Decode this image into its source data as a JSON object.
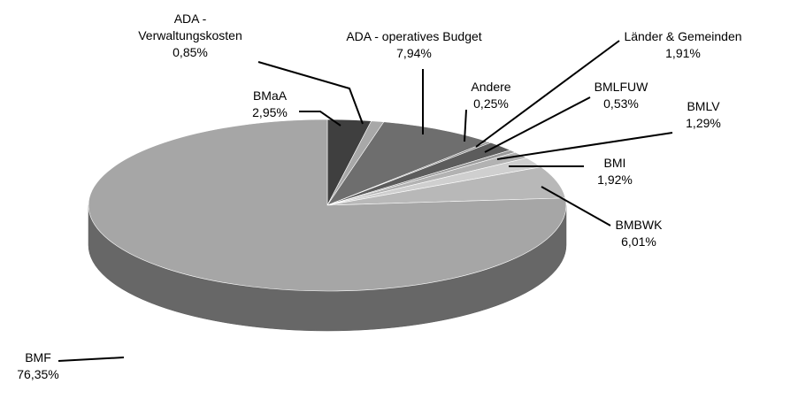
{
  "chart_data": {
    "type": "pie3d",
    "categories": [
      "BMaA",
      "ADA - Verwaltungskosten",
      "ADA - operatives Budget",
      "Andere",
      "Länder & Gemeinden",
      "BMLFUW",
      "BMLV",
      "BMI",
      "BMBWK",
      "BMF"
    ],
    "values": [
      2.95,
      0.85,
      7.94,
      0.25,
      1.91,
      0.53,
      1.29,
      1.92,
      6.01,
      76.35
    ],
    "value_labels": [
      "2,95%",
      "0,85%",
      "7,94%",
      "0,25%",
      "1,91%",
      "0,53%",
      "1,29%",
      "1,92%",
      "6,01%",
      "76,35%"
    ],
    "colors": [
      "#3f3f3f",
      "#a8a8a8",
      "#6e6e6e",
      "#8a8a8a",
      "#5c5c5c",
      "#9a9a9a",
      "#b2b2b2",
      "#cfcfcf",
      "#b8b8b8",
      "#a6a6a6"
    ]
  }
}
